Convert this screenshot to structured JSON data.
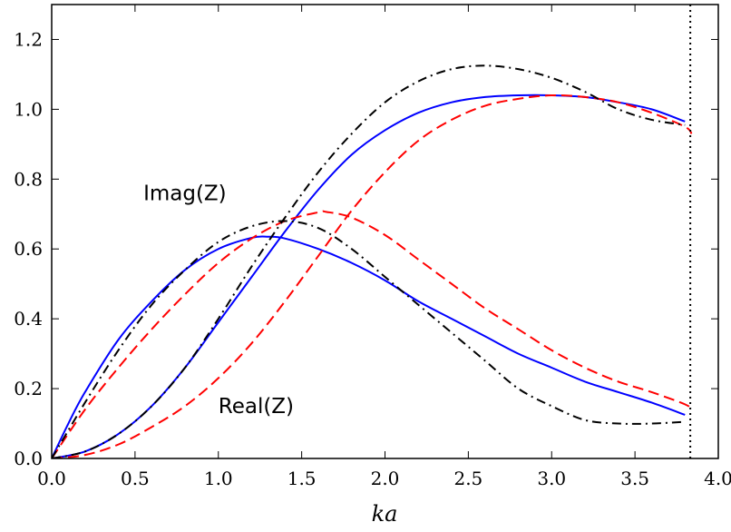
{
  "chart_data": {
    "type": "line",
    "title": "",
    "xlabel": "ka",
    "ylabel": "",
    "xlim": [
      0.0,
      4.0
    ],
    "ylim": [
      0.0,
      1.3
    ],
    "grid": false,
    "legend": "none",
    "xticks": [
      "0.0",
      "0.5",
      "1.0",
      "1.5",
      "2.0",
      "2.5",
      "3.0",
      "3.5",
      "4.0"
    ],
    "yticks": [
      "0.0",
      "0.2",
      "0.4",
      "0.6",
      "0.8",
      "1.0",
      "1.2"
    ],
    "vline": {
      "x": 3.832,
      "style": "dotted",
      "color": "#000000"
    },
    "annotations": [
      {
        "text": "Imag(Z)",
        "x": 0.55,
        "y": 0.74
      },
      {
        "text": "Real(Z)",
        "x": 1.0,
        "y": 0.13
      }
    ],
    "series": [
      {
        "curve": "real",
        "style": "solid",
        "color": "#0000ff",
        "x": [
          0.0,
          0.2,
          0.4,
          0.6,
          0.8,
          1.0,
          1.2,
          1.4,
          1.6,
          1.8,
          2.0,
          2.2,
          2.4,
          2.6,
          2.8,
          3.0,
          3.2,
          3.4,
          3.6,
          3.8
        ],
        "y": [
          0.0,
          0.02,
          0.07,
          0.15,
          0.26,
          0.39,
          0.52,
          0.65,
          0.77,
          0.87,
          0.94,
          0.99,
          1.02,
          1.035,
          1.04,
          1.04,
          1.035,
          1.02,
          1.0,
          0.965
        ]
      },
      {
        "curve": "imag",
        "style": "solid",
        "color": "#0000ff",
        "x": [
          0.0,
          0.1,
          0.2,
          0.4,
          0.6,
          0.8,
          1.0,
          1.2,
          1.3,
          1.4,
          1.6,
          1.8,
          2.0,
          2.2,
          2.4,
          2.6,
          2.8,
          3.0,
          3.2,
          3.4,
          3.6,
          3.8
        ],
        "y": [
          0.0,
          0.1,
          0.19,
          0.34,
          0.45,
          0.54,
          0.6,
          0.632,
          0.635,
          0.63,
          0.6,
          0.56,
          0.51,
          0.45,
          0.4,
          0.35,
          0.3,
          0.26,
          0.22,
          0.19,
          0.16,
          0.125
        ]
      },
      {
        "curve": "real",
        "style": "dashed",
        "color": "#ff0000",
        "x": [
          0.0,
          0.2,
          0.4,
          0.6,
          0.8,
          1.0,
          1.2,
          1.4,
          1.6,
          1.8,
          2.0,
          2.2,
          2.4,
          2.6,
          2.8,
          3.0,
          3.2,
          3.4,
          3.6,
          3.8,
          3.84
        ],
        "y": [
          0.0,
          0.01,
          0.04,
          0.09,
          0.15,
          0.23,
          0.33,
          0.45,
          0.58,
          0.71,
          0.82,
          0.91,
          0.97,
          1.01,
          1.03,
          1.04,
          1.035,
          1.02,
          0.99,
          0.95,
          0.93
        ]
      },
      {
        "curve": "imag",
        "style": "dashed",
        "color": "#ff0000",
        "x": [
          0.0,
          0.2,
          0.4,
          0.6,
          0.8,
          1.0,
          1.2,
          1.4,
          1.6,
          1.65,
          1.8,
          2.0,
          2.2,
          2.4,
          2.6,
          2.8,
          3.0,
          3.2,
          3.4,
          3.6,
          3.8,
          3.84
        ],
        "y": [
          0.0,
          0.14,
          0.26,
          0.37,
          0.47,
          0.56,
          0.63,
          0.68,
          0.705,
          0.706,
          0.69,
          0.64,
          0.57,
          0.5,
          0.43,
          0.37,
          0.31,
          0.26,
          0.22,
          0.19,
          0.155,
          0.14
        ]
      },
      {
        "curve": "real",
        "style": "dashdot",
        "color": "#000000",
        "x": [
          0.0,
          0.2,
          0.4,
          0.6,
          0.8,
          1.0,
          1.2,
          1.4,
          1.6,
          1.8,
          2.0,
          2.2,
          2.4,
          2.6,
          2.8,
          3.0,
          3.2,
          3.4,
          3.6,
          3.8
        ],
        "y": [
          0.0,
          0.02,
          0.07,
          0.15,
          0.26,
          0.4,
          0.55,
          0.69,
          0.82,
          0.93,
          1.02,
          1.08,
          1.115,
          1.125,
          1.115,
          1.09,
          1.05,
          1.0,
          0.97,
          0.955
        ]
      },
      {
        "curve": "imag",
        "style": "dashdot",
        "color": "#000000",
        "x": [
          0.0,
          0.2,
          0.4,
          0.6,
          0.8,
          1.0,
          1.2,
          1.4,
          1.6,
          1.8,
          2.0,
          2.2,
          2.4,
          2.6,
          2.8,
          3.0,
          3.2,
          3.4,
          3.6,
          3.8
        ],
        "y": [
          0.0,
          0.16,
          0.31,
          0.44,
          0.54,
          0.62,
          0.665,
          0.68,
          0.66,
          0.6,
          0.52,
          0.44,
          0.36,
          0.28,
          0.2,
          0.15,
          0.11,
          0.1,
          0.1,
          0.105
        ]
      }
    ]
  }
}
